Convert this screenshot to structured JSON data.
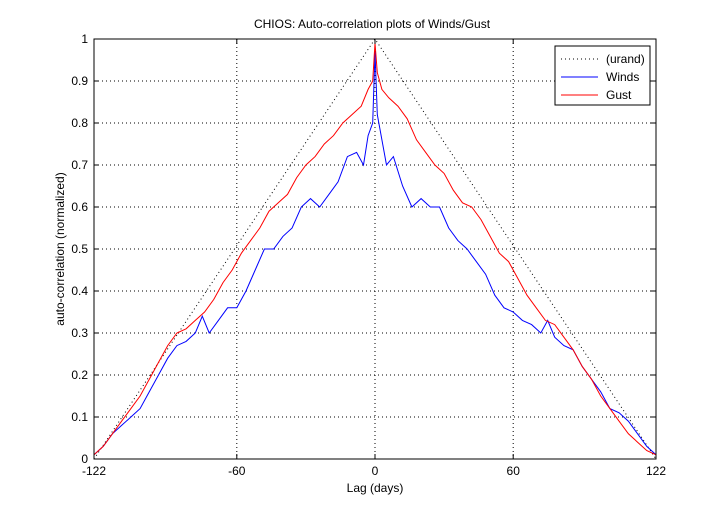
{
  "chart_data": {
    "type": "line",
    "title": "CHIOS: Auto-correlation plots of Winds/Gust",
    "xlabel": "Lag (days)",
    "ylabel": "auto-correlation (normalized)",
    "xlim": [
      -122,
      122
    ],
    "ylim": [
      0,
      1
    ],
    "xticks": [
      -122,
      -60,
      0,
      60,
      122
    ],
    "xtick_labels": [
      "-122",
      "-60",
      "0",
      "60",
      "122"
    ],
    "yticks": [
      0,
      0.1,
      0.2,
      0.3,
      0.4,
      0.5,
      0.6,
      0.7,
      0.8,
      0.9,
      1
    ],
    "ytick_labels": [
      "0",
      "0.1",
      "0.2",
      "0.3",
      "0.4",
      "0.5",
      "0.6",
      "0.7",
      "0.8",
      "0.9",
      "1"
    ],
    "grid": true,
    "legend_position": "top-right",
    "series": [
      {
        "name": "(urand)",
        "color": "#000000",
        "style": "dotted",
        "x": [
          -122,
          0,
          122
        ],
        "y": [
          0,
          1,
          0
        ]
      },
      {
        "name": "Winds",
        "color": "#0000ff",
        "style": "solid",
        "x": [
          -122,
          -118,
          -114,
          -110,
          -106,
          -102,
          -98,
          -94,
          -90,
          -86,
          -82,
          -78,
          -75,
          -72,
          -68,
          -64,
          -60,
          -56,
          -52,
          -48,
          -44,
          -40,
          -36,
          -32,
          -28,
          -24,
          -20,
          -16,
          -12,
          -8,
          -5,
          -3,
          -1,
          0,
          1,
          3,
          5,
          8,
          12,
          16,
          20,
          24,
          28,
          32,
          36,
          40,
          44,
          48,
          52,
          56,
          60,
          64,
          68,
          72,
          75,
          78,
          82,
          86,
          90,
          94,
          98,
          102,
          106,
          110,
          114,
          118,
          122
        ],
        "y": [
          0.01,
          0.03,
          0.06,
          0.08,
          0.1,
          0.12,
          0.16,
          0.2,
          0.24,
          0.27,
          0.28,
          0.3,
          0.34,
          0.3,
          0.33,
          0.36,
          0.36,
          0.4,
          0.45,
          0.5,
          0.5,
          0.53,
          0.55,
          0.6,
          0.62,
          0.6,
          0.63,
          0.66,
          0.72,
          0.73,
          0.7,
          0.77,
          0.8,
          0.97,
          0.82,
          0.76,
          0.7,
          0.72,
          0.65,
          0.6,
          0.62,
          0.6,
          0.6,
          0.55,
          0.52,
          0.5,
          0.47,
          0.44,
          0.39,
          0.36,
          0.35,
          0.33,
          0.32,
          0.3,
          0.33,
          0.29,
          0.27,
          0.26,
          0.22,
          0.19,
          0.16,
          0.12,
          0.11,
          0.09,
          0.06,
          0.03,
          0.01
        ]
      },
      {
        "name": "Gust",
        "color": "#ff0000",
        "style": "solid",
        "x": [
          -122,
          -118,
          -114,
          -110,
          -106,
          -102,
          -98,
          -94,
          -90,
          -86,
          -82,
          -78,
          -74,
          -70,
          -66,
          -62,
          -58,
          -54,
          -50,
          -46,
          -42,
          -38,
          -34,
          -30,
          -26,
          -22,
          -18,
          -14,
          -10,
          -6,
          -3,
          -1,
          0,
          1,
          3,
          6,
          10,
          14,
          18,
          22,
          26,
          30,
          34,
          38,
          42,
          46,
          50,
          54,
          58,
          62,
          66,
          70,
          74,
          78,
          82,
          86,
          90,
          94,
          98,
          102,
          106,
          110,
          114,
          118,
          122
        ],
        "y": [
          0.01,
          0.03,
          0.06,
          0.09,
          0.12,
          0.15,
          0.19,
          0.23,
          0.27,
          0.3,
          0.31,
          0.33,
          0.35,
          0.38,
          0.42,
          0.45,
          0.49,
          0.52,
          0.55,
          0.59,
          0.61,
          0.63,
          0.67,
          0.7,
          0.72,
          0.75,
          0.77,
          0.8,
          0.82,
          0.84,
          0.88,
          0.9,
          0.99,
          0.92,
          0.88,
          0.86,
          0.84,
          0.81,
          0.76,
          0.73,
          0.7,
          0.68,
          0.64,
          0.61,
          0.6,
          0.57,
          0.53,
          0.49,
          0.47,
          0.43,
          0.39,
          0.36,
          0.33,
          0.32,
          0.29,
          0.26,
          0.22,
          0.19,
          0.15,
          0.12,
          0.09,
          0.06,
          0.04,
          0.02,
          0.01
        ]
      }
    ]
  }
}
